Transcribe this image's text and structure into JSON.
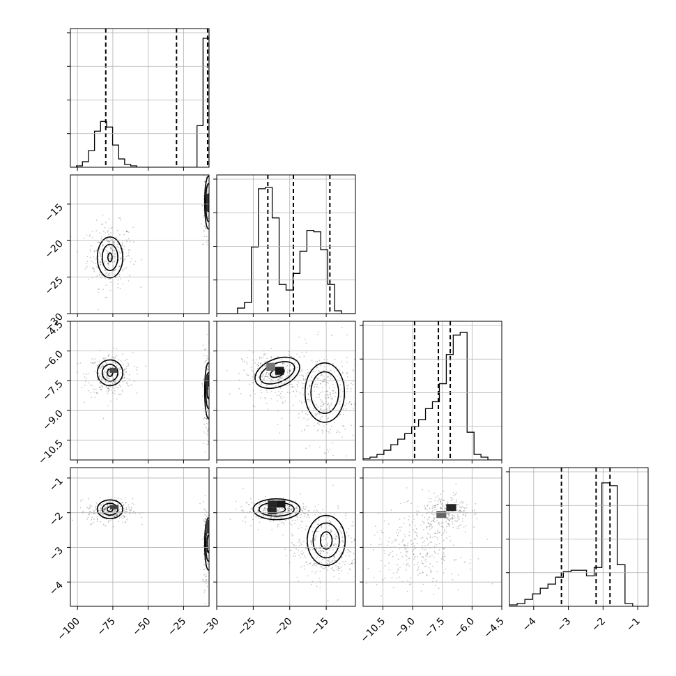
{
  "chart_data": {
    "type": "corner",
    "parameters": [
      {
        "range": [
          -105,
          -7
        ],
        "ticks": [
          -100,
          -75,
          -50,
          -25
        ],
        "tick_labels": [
          "−100",
          "−75",
          "−50",
          "−25"
        ]
      },
      {
        "range": [
          -30,
          -11
        ],
        "ticks": [
          -30,
          -25,
          -20,
          -15
        ],
        "tick_labels": [
          "−30",
          "−25",
          "−20",
          "−15"
        ]
      },
      {
        "range": [
          -11.5,
          -4.5
        ],
        "ticks": [
          -10.5,
          -9.0,
          -7.5,
          -6.0,
          -4.5
        ],
        "tick_labels": [
          "−10.5",
          "−9.0",
          "−7.5",
          "−6.0",
          "−4.5"
        ]
      },
      {
        "range": [
          -4.7,
          -0.7
        ],
        "ticks": [
          -4,
          -3,
          -2,
          -1
        ],
        "tick_labels": [
          "−4",
          "−3",
          "−2",
          "−1"
        ]
      }
    ],
    "quantiles": [
      [
        -80,
        -30,
        -8
      ],
      [
        -23,
        -19.5,
        -14.5
      ],
      [
        -8.9,
        -7.7,
        -7.1
      ],
      [
        -3.2,
        -2.2,
        -1.8
      ]
    ],
    "histograms": [
      {
        "counts": [
          0,
          0.01,
          0.04,
          0.12,
          0.26,
          0.33,
          0.29,
          0.16,
          0.06,
          0.02,
          0.01,
          0,
          0,
          0,
          0,
          0,
          0,
          0,
          0,
          0,
          0,
          0.3,
          0.93
        ]
      },
      {
        "counts": [
          0,
          0,
          0,
          0.04,
          0.08,
          0.48,
          0.9,
          0.91,
          0.69,
          0.21,
          0.17,
          0.29,
          0.45,
          0.6,
          0.59,
          0.46,
          0.21,
          0.02,
          0,
          0
        ]
      },
      {
        "counts": [
          0.01,
          0.02,
          0.04,
          0.07,
          0.11,
          0.15,
          0.19,
          0.24,
          0.29,
          0.37,
          0.42,
          0.55,
          0.76,
          0.9,
          0.92,
          0.2,
          0.04,
          0.02,
          0,
          0
        ]
      },
      {
        "counts": [
          0.01,
          0.02,
          0.05,
          0.09,
          0.13,
          0.16,
          0.21,
          0.25,
          0.26,
          0.26,
          0.22,
          0.28,
          0.89,
          0.87,
          0.3,
          0.02,
          0,
          0
        ]
      }
    ],
    "modes": [
      {
        "a": -77,
        "b": 1,
        "fa": 0.8,
        "fb": 0.2
      },
      {
        "a": -22,
        "b": -15,
        "fa": 0.48,
        "fb": 0.52
      },
      {
        "a": -7.5,
        "b": -7.5
      },
      {
        "a": -2,
        "b": -2.9
      }
    ],
    "scatter_blobs": [
      {
        "row": 1,
        "col": 0,
        "cx": -77,
        "cy": -22,
        "sx": 8,
        "sy": 2.2,
        "n": 300
      },
      {
        "row": 1,
        "col": 0,
        "cx": -9,
        "cy": -15,
        "sx": 1.3,
        "sy": 3,
        "n": 120
      },
      {
        "row": 2,
        "col": 0,
        "cx": -77,
        "cy": -7.2,
        "sx": 8,
        "sy": 0.55,
        "n": 300
      },
      {
        "row": 2,
        "col": 0,
        "cx": -9,
        "cy": -8.2,
        "sx": 1.3,
        "sy": 1.3,
        "n": 120
      },
      {
        "row": 2,
        "col": 1,
        "cx": -22,
        "cy": -7.2,
        "sx": 2.2,
        "sy": 0.55,
        "n": 300
      },
      {
        "row": 2,
        "col": 1,
        "cx": -15,
        "cy": -8.3,
        "sx": 2.5,
        "sy": 1.2,
        "n": 350
      },
      {
        "row": 3,
        "col": 0,
        "cx": -77,
        "cy": -1.95,
        "sx": 8,
        "sy": 0.18,
        "n": 300
      },
      {
        "row": 3,
        "col": 0,
        "cx": -9,
        "cy": -3,
        "sx": 1.3,
        "sy": 0.6,
        "n": 120
      },
      {
        "row": 3,
        "col": 1,
        "cx": -22,
        "cy": -1.95,
        "sx": 2.2,
        "sy": 0.18,
        "n": 300
      },
      {
        "row": 3,
        "col": 1,
        "cx": -15,
        "cy": -3,
        "sx": 2.5,
        "sy": 0.5,
        "n": 350
      },
      {
        "row": 3,
        "col": 2,
        "cx": -7.3,
        "cy": -2,
        "sx": 0.6,
        "sy": 0.3,
        "n": 250
      },
      {
        "row": 3,
        "col": 2,
        "cx": -8.8,
        "cy": -3.1,
        "sx": 1.2,
        "sy": 0.55,
        "n": 300
      }
    ],
    "contours": [
      {
        "row": 1,
        "col": 0,
        "cx": -77,
        "cy": -22.3,
        "rx": [
          9,
          5.5,
          1.5
        ],
        "ry": [
          2.8,
          1.8,
          0.6
        ],
        "rot": 0
      },
      {
        "row": 1,
        "col": 0,
        "cx": -7.5,
        "cy": -14.8,
        "rx": [
          2.6,
          1.8,
          0.9
        ],
        "ry": [
          3.6,
          2.6,
          1.2
        ],
        "rot": 0
      },
      {
        "row": 2,
        "col": 0,
        "cx": -77,
        "cy": -7.1,
        "rx": [
          9,
          5.5,
          2
        ],
        "ry": [
          0.65,
          0.42,
          0.18
        ],
        "rot": 0
      },
      {
        "row": 2,
        "col": 0,
        "cx": -7.5,
        "cy": -8,
        "rx": [
          2.6,
          1.8,
          0.9
        ],
        "ry": [
          1.4,
          0.9,
          0.4
        ],
        "rot": 0
      },
      {
        "row": 2,
        "col": 1,
        "cx": -21.7,
        "cy": -7.1,
        "rx": [
          3.2,
          2.5,
          1
        ],
        "ry": [
          0.7,
          0.48,
          0.2
        ],
        "rot": -22
      },
      {
        "row": 2,
        "col": 1,
        "cx": -15.2,
        "cy": -8.1,
        "rx": [
          2.7,
          1.9
        ],
        "ry": [
          1.5,
          1.05
        ],
        "rot": 0
      },
      {
        "row": 3,
        "col": 0,
        "cx": -77,
        "cy": -1.9,
        "rx": [
          9,
          5.5,
          2
        ],
        "ry": [
          0.27,
          0.17,
          0.07
        ],
        "rot": 0
      },
      {
        "row": 3,
        "col": 0,
        "cx": -7.5,
        "cy": -2.9,
        "rx": [
          2.6,
          1.8,
          0.9
        ],
        "ry": [
          0.75,
          0.5,
          0.25
        ],
        "rot": 0
      },
      {
        "row": 3,
        "col": 1,
        "cx": -21.8,
        "cy": -1.9,
        "rx": [
          3.2,
          2.4,
          1.2
        ],
        "ry": [
          0.3,
          0.2,
          0.1
        ],
        "rot": 0
      },
      {
        "row": 3,
        "col": 1,
        "cx": -15,
        "cy": -2.8,
        "rx": [
          2.6,
          1.8,
          0.8
        ],
        "ry": [
          0.72,
          0.5,
          0.25
        ],
        "rot": 0
      }
    ],
    "dark_cells": [
      {
        "row": 1,
        "col": 0,
        "x": -9,
        "y": -16,
        "w": 2,
        "h": 2.4,
        "shade": 0.8
      },
      {
        "row": 2,
        "col": 0,
        "x": -77,
        "y": -7.1,
        "w": 5,
        "h": 0.25,
        "shade": 0.7
      },
      {
        "row": 2,
        "col": 0,
        "x": -9,
        "y": -7.8,
        "w": 2,
        "h": 0.6,
        "shade": 0.8
      },
      {
        "row": 2,
        "col": 1,
        "x": -22,
        "y": -7.2,
        "w": 1.2,
        "h": 0.4,
        "shade": 0.9
      },
      {
        "row": 2,
        "col": 1,
        "x": -23.2,
        "y": -7.0,
        "w": 1.2,
        "h": 0.4,
        "shade": 0.55
      },
      {
        "row": 3,
        "col": 0,
        "x": -77,
        "y": -1.9,
        "w": 6,
        "h": 0.12,
        "shade": 0.75
      },
      {
        "row": 3,
        "col": 0,
        "x": -9,
        "y": -2.6,
        "w": 2,
        "h": 0.4,
        "shade": 0.75
      },
      {
        "row": 3,
        "col": 1,
        "x": -23,
        "y": -1.85,
        "w": 1.2,
        "h": 0.2,
        "shade": 0.85
      },
      {
        "row": 3,
        "col": 1,
        "x": -21.8,
        "y": -1.85,
        "w": 1.2,
        "h": 0.2,
        "shade": 0.9
      },
      {
        "row": 3,
        "col": 1,
        "x": -23,
        "y": -2.05,
        "w": 1.2,
        "h": 0.2,
        "shade": 0.85
      },
      {
        "row": 3,
        "col": 2,
        "x": -7.3,
        "y": -1.95,
        "w": 0.5,
        "h": 0.2,
        "shade": 0.85
      },
      {
        "row": 3,
        "col": 2,
        "x": -7.8,
        "y": -2.15,
        "w": 0.5,
        "h": 0.2,
        "shade": 0.6
      }
    ],
    "grid": true
  }
}
